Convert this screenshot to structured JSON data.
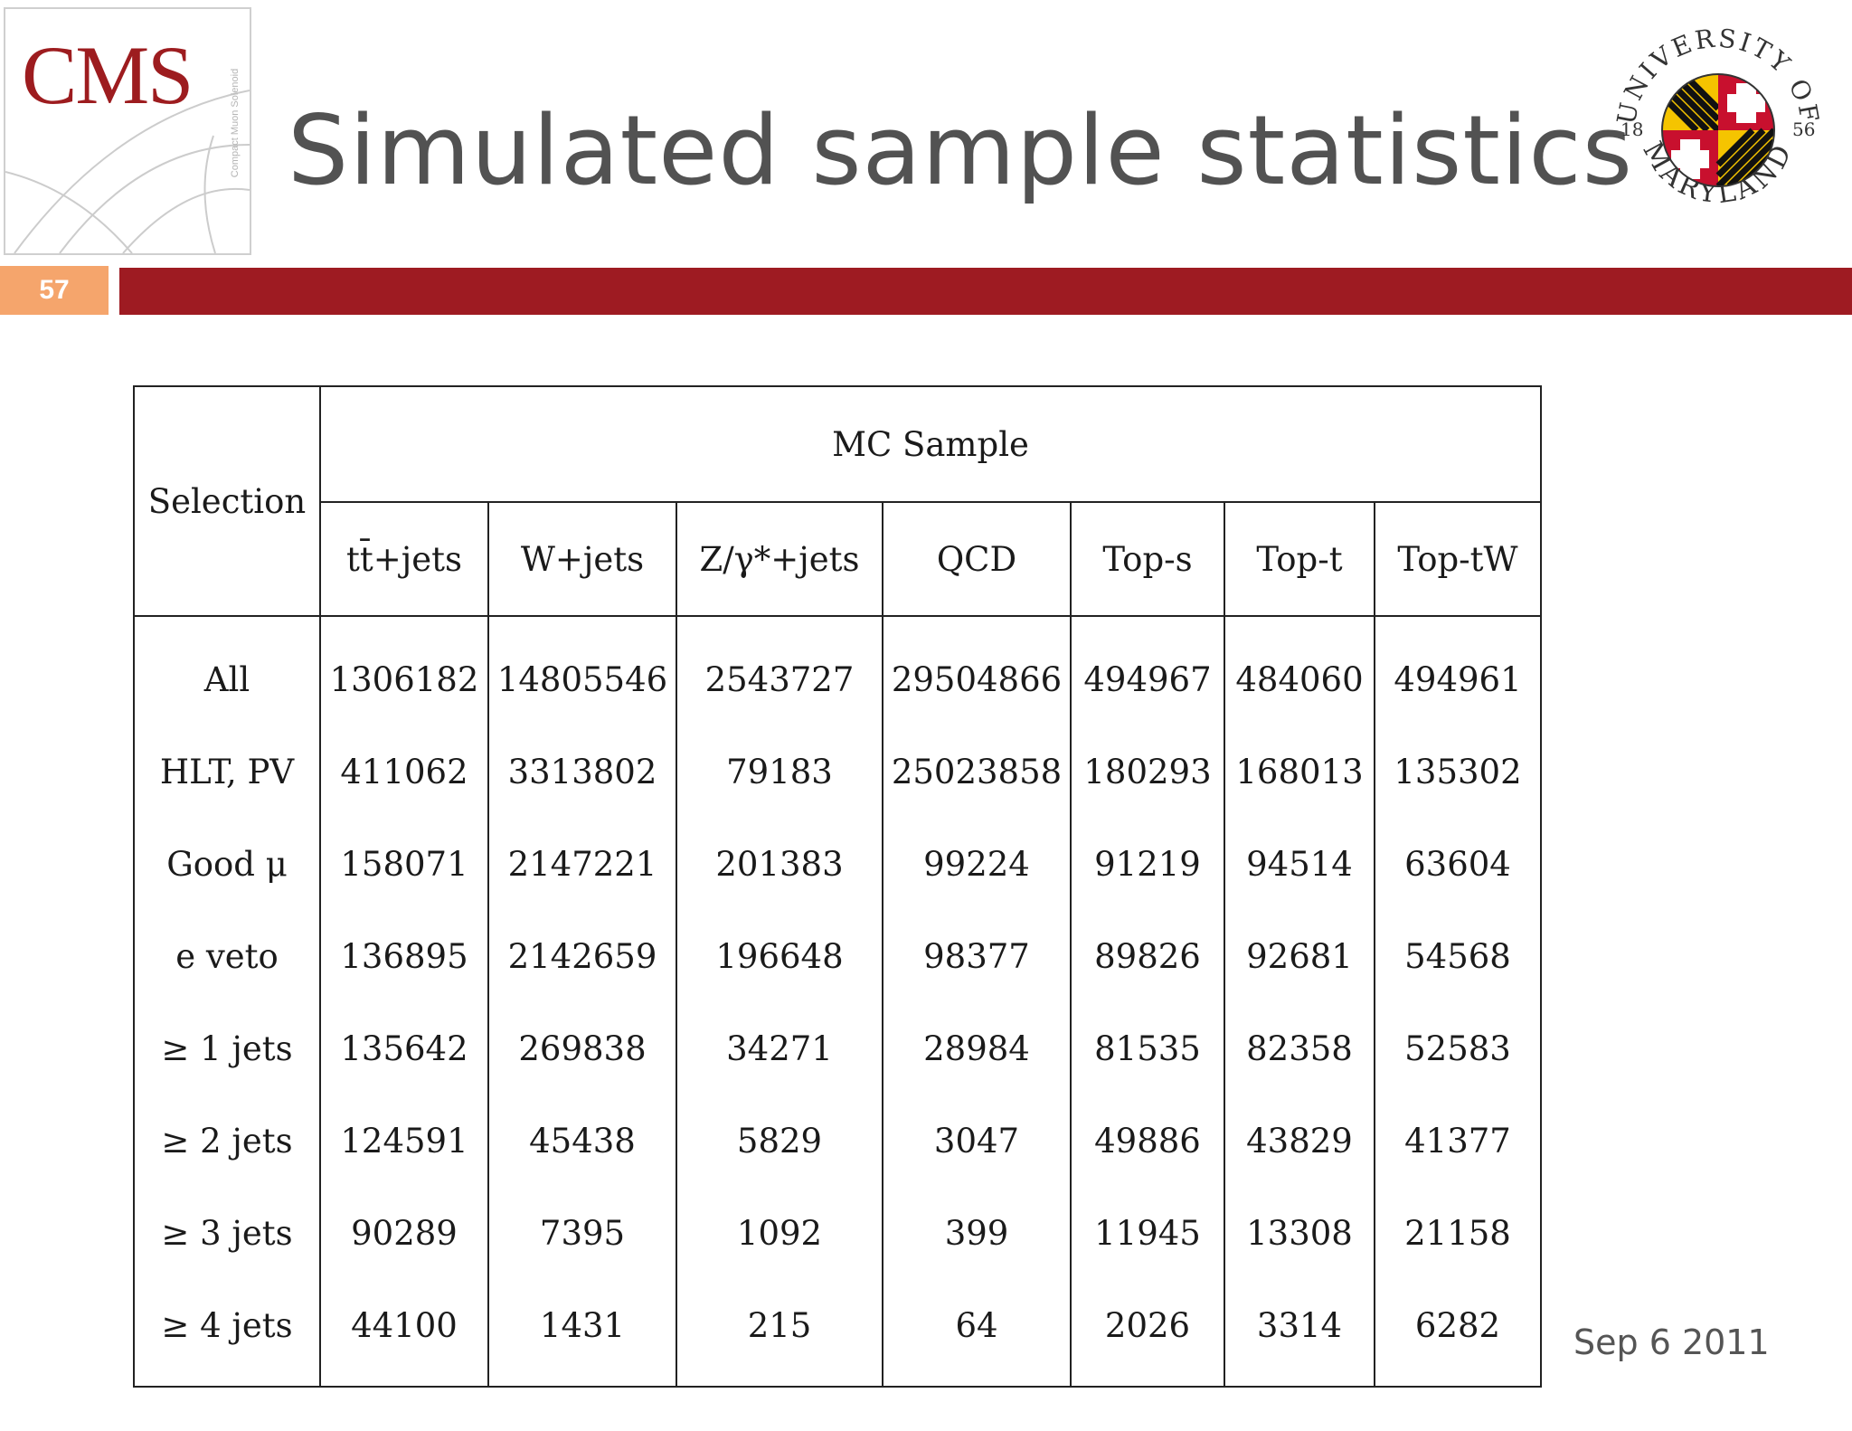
{
  "slide": {
    "title": "Simulated sample statistics",
    "page_number": "57",
    "date": "Sep 6 2011",
    "colors": {
      "accent_red": "#9e1b22",
      "page_badge": "#f5a56c",
      "title_gray": "#525252"
    }
  },
  "logos": {
    "cms": {
      "text": "CMS",
      "side_text": "Compact Muon Solenoid"
    },
    "umd": {
      "top_text": "UNIVERSITY OF",
      "bottom_text": "MARYLAND",
      "year_left": "18",
      "year_right": "56"
    }
  },
  "table": {
    "selection_header": "Selection",
    "group_header": "MC Sample",
    "columns": [
      "tt̄+jets",
      "W+jets",
      "Z/γ*+jets",
      "QCD",
      "Top-s",
      "Top-t",
      "Top-tW"
    ],
    "rows": [
      {
        "label": "All",
        "values": [
          "1306182",
          "14805546",
          "2543727",
          "29504866",
          "494967",
          "484060",
          "494961"
        ]
      },
      {
        "label": "HLT, PV",
        "values": [
          "411062",
          "3313802",
          "79183",
          "25023858",
          "180293",
          "168013",
          "135302"
        ]
      },
      {
        "label": "Good μ",
        "values": [
          "158071",
          "2147221",
          "201383",
          "99224",
          "91219",
          "94514",
          "63604"
        ]
      },
      {
        "label": "e veto",
        "values": [
          "136895",
          "2142659",
          "196648",
          "98377",
          "89826",
          "92681",
          "54568"
        ]
      },
      {
        "label": "≥ 1 jets",
        "values": [
          "135642",
          "269838",
          "34271",
          "28984",
          "81535",
          "82358",
          "52583"
        ]
      },
      {
        "label": "≥ 2 jets",
        "values": [
          "124591",
          "45438",
          "5829",
          "3047",
          "49886",
          "43829",
          "41377"
        ]
      },
      {
        "label": "≥ 3 jets",
        "values": [
          "90289",
          "7395",
          "1092",
          "399",
          "11945",
          "13308",
          "21158"
        ]
      },
      {
        "label": "≥ 4 jets",
        "values": [
          "44100",
          "1431",
          "215",
          "64",
          "2026",
          "3314",
          "6282"
        ]
      }
    ]
  }
}
